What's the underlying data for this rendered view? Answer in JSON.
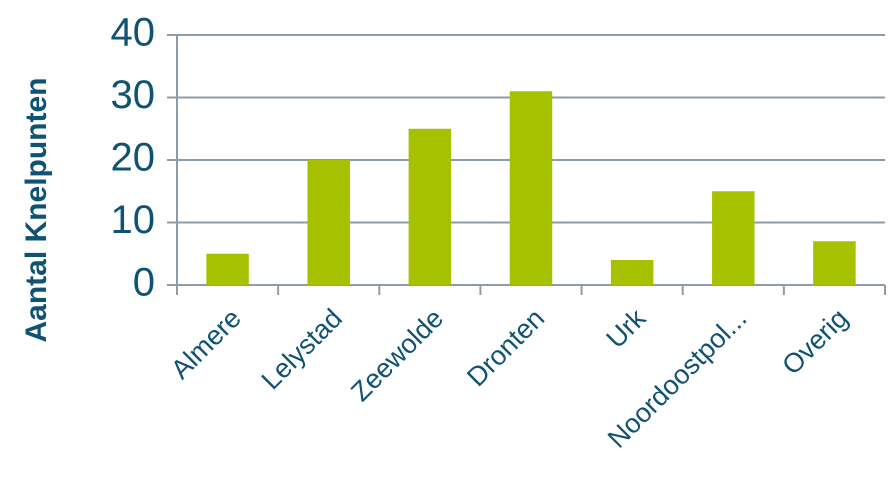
{
  "chart_data": {
    "type": "bar",
    "y_label": "Aantal Knelpunten",
    "categories": [
      "Almere",
      "Lelystad",
      "Zeewolde",
      "Dronten",
      "Urk",
      "Noordoostpol...",
      "Overig"
    ],
    "values": [
      5,
      20,
      25,
      31,
      4,
      15,
      7
    ],
    "color": "#a5c100",
    "ylim": [
      0,
      40
    ],
    "yticks": [
      0,
      10,
      20,
      30,
      40
    ],
    "grid": true
  }
}
